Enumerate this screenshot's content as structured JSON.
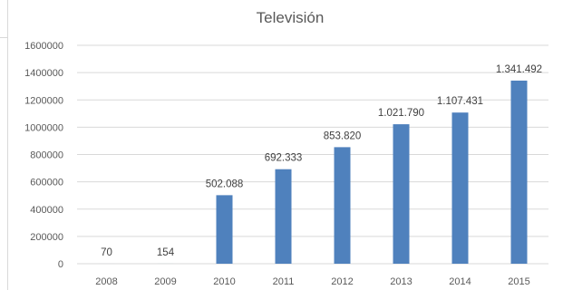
{
  "chart_data": {
    "type": "bar",
    "title": "Televisión",
    "xlabel": "",
    "ylabel": "",
    "categories": [
      "2008",
      "2009",
      "2010",
      "2011",
      "2012",
      "2013",
      "2014",
      "2015"
    ],
    "values": [
      70,
      154,
      502088,
      692333,
      853820,
      1021790,
      1107431,
      1341492
    ],
    "data_labels": [
      "70",
      "154",
      "502.088",
      "692.333",
      "853.820",
      "1.021.790",
      "1.107.431",
      "1.341.492"
    ],
    "ylim": [
      0,
      1600000
    ],
    "yticks": [
      0,
      200000,
      400000,
      600000,
      800000,
      1000000,
      1200000,
      1400000,
      1600000
    ],
    "ytick_labels": [
      "0",
      "200000",
      "400000",
      "600000",
      "800000",
      "1000000",
      "1200000",
      "1400000",
      "1600000"
    ],
    "grid": true,
    "legend": "none",
    "colors": {
      "bar": "#4f81bd",
      "grid": "#d9d9d9",
      "text": "#595959",
      "label": "#404040"
    }
  }
}
